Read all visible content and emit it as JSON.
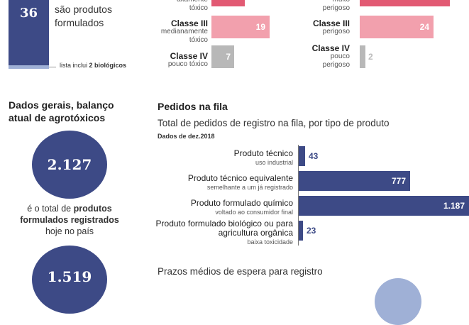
{
  "top_left": {
    "count": "36",
    "text_l1": "são produtos",
    "text_l2": "formulados",
    "note_prefix": "lista inclui ",
    "note_bold": "2 biológicos"
  },
  "tox_col1": {
    "partial_label": "altamente",
    "partial_sub": "tóxico",
    "rows": [
      {
        "cls": "Classe III",
        "sub1": "medianamente",
        "sub2": "tóxico",
        "value": "19"
      },
      {
        "cls": "Classe IV",
        "sub1": "pouco tóxico",
        "sub2": "",
        "value": "7"
      }
    ]
  },
  "tox_col2": {
    "partial_label": "muito",
    "partial_sub": "perigoso",
    "rows": [
      {
        "cls": "Classe III",
        "sub1": "perigoso",
        "sub2": "",
        "value": "24"
      },
      {
        "cls": "Classe IV",
        "sub1": "pouco",
        "sub2": "perigoso",
        "value": "2"
      }
    ]
  },
  "left_panel": {
    "title_l1": "Dados gerais, balanço",
    "title_l2": "atual de agrotóxicos",
    "circle1": "2.127",
    "desc_l1_pre": "é o total de ",
    "desc_l1_bold": "produtos",
    "desc_l2_bold": "formulados registrados",
    "desc_l3": "hoje no país",
    "circle2": "1.519"
  },
  "queue": {
    "section_title": "Pedidos na fila",
    "subtitle": "Total de pedidos de registro na fila, por tipo de produto",
    "date_note": "Dados de dez.2018",
    "footer_title": "Prazos médios de espera para registro"
  },
  "chart_data": {
    "type": "bar",
    "orientation": "horizontal",
    "categories": [
      {
        "label": "Produto técnico",
        "sub": "uso industrial"
      },
      {
        "label": "Produto técnico equivalente",
        "sub": "semelhante a um já registrado"
      },
      {
        "label": "Produto formulado químico",
        "sub": "voltado ao consumidor final"
      },
      {
        "label": "Produto formulado biológico ou para agricultura orgânica",
        "sub": "baixa toxicidade"
      }
    ],
    "values": [
      43,
      777,
      1187,
      23
    ],
    "value_labels": [
      "43",
      "777",
      "1.187",
      "23"
    ],
    "xlim": [
      0,
      1187
    ],
    "color": "#3d4a86"
  },
  "colors": {
    "navy": "#3d4a86",
    "pink_dark": "#e25a73",
    "pink_light": "#f2a0ad",
    "gray": "#b8b8b8",
    "light_blue": "#9fb0d6"
  }
}
